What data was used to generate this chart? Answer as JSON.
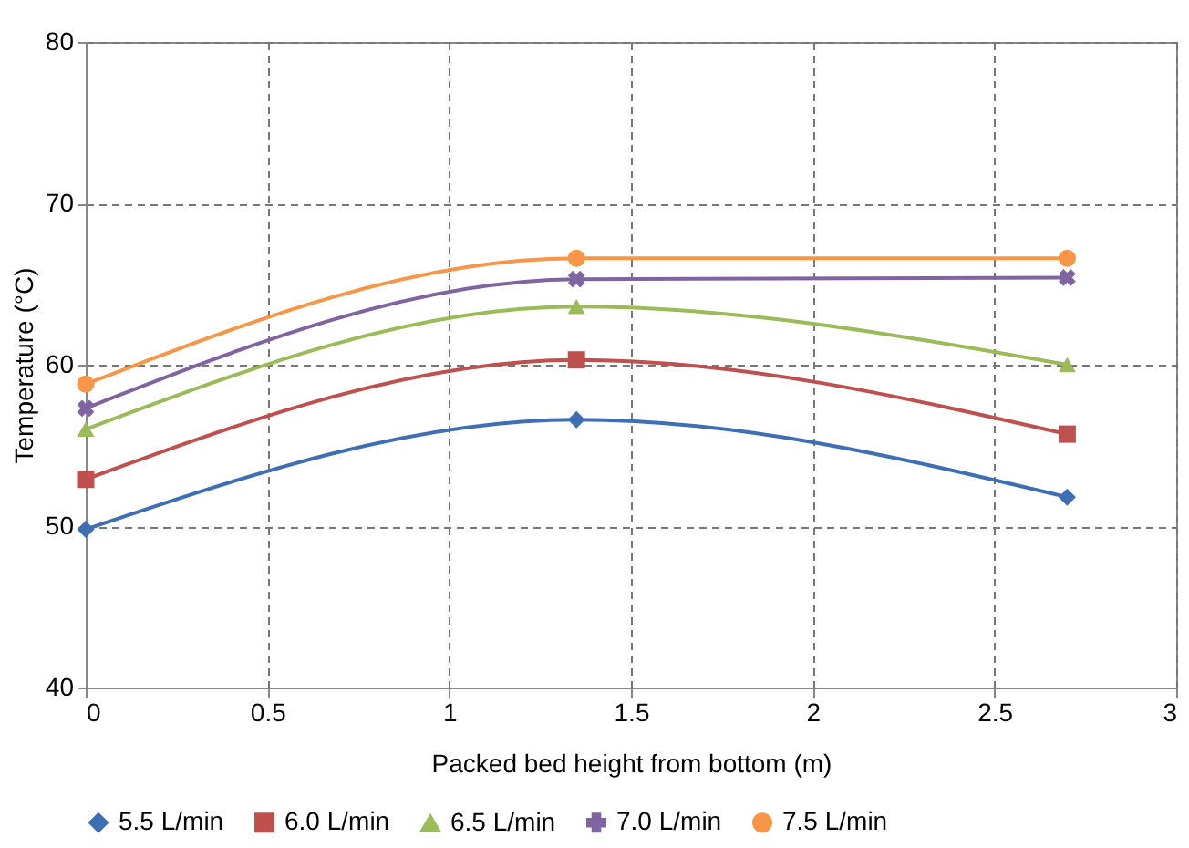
{
  "chart_data": {
    "type": "line",
    "xlabel": "Packed bed height from bottom (m)",
    "ylabel": "Temperature (°C)",
    "x": [
      0,
      1.35,
      2.7
    ],
    "series": [
      {
        "name": "5.5 L/min",
        "color": "#3e6fb5",
        "marker": "diamond",
        "values": [
          49.8,
          56.6,
          51.8
        ]
      },
      {
        "name": "6.0 L/min",
        "color": "#c0504d",
        "marker": "square",
        "values": [
          52.9,
          60.3,
          55.7
        ]
      },
      {
        "name": "6.5 L/min",
        "color": "#9bbb59",
        "marker": "triangle",
        "values": [
          56.0,
          63.6,
          60.0
        ]
      },
      {
        "name": "7.0 L/min",
        "color": "#8064a2",
        "marker": "cross",
        "values": [
          57.3,
          65.3,
          65.4
        ]
      },
      {
        "name": "7.5 L/min",
        "color": "#f79646",
        "marker": "circle",
        "values": [
          58.8,
          66.6,
          66.6
        ]
      }
    ],
    "xlim": [
      0,
      3
    ],
    "xticks": [
      0,
      0.5,
      1,
      1.5,
      2,
      2.5,
      3
    ],
    "ylim": [
      40,
      80
    ],
    "yticks": [
      40,
      50,
      60,
      70,
      80
    ],
    "grid": true,
    "legend": "bottom",
    "line_style": "solid"
  }
}
